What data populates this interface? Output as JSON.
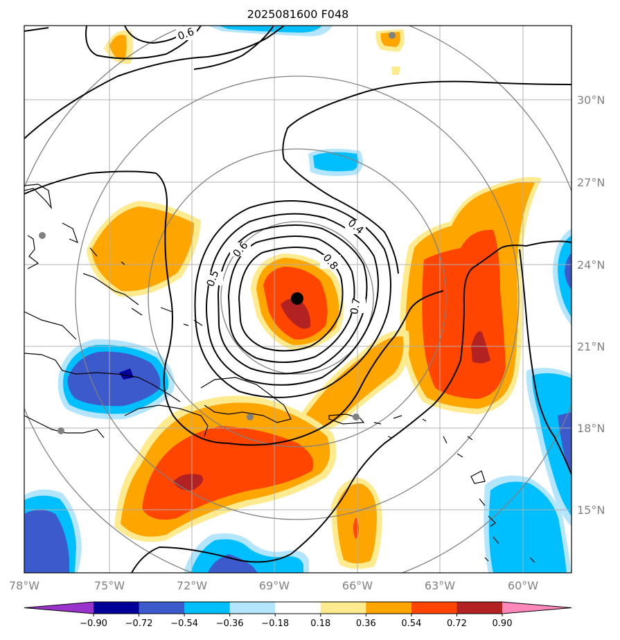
{
  "title": "2025081600 F048",
  "map": {
    "lon_labels": [
      "78°W",
      "75°W",
      "72°W",
      "69°W",
      "66°W",
      "63°W",
      "60°W"
    ],
    "lat_labels": [
      "30°N",
      "27°N",
      "24°N",
      "21°N",
      "18°N",
      "15°N"
    ],
    "contour_labels": [
      "0.6",
      "0.4",
      "0.6",
      "0.8",
      "0.5",
      "0.7"
    ],
    "center_marker": "storm-center"
  },
  "colorbar": {
    "ticks": [
      "−0.90",
      "−0.72",
      "−0.54",
      "−0.36",
      "−0.18",
      "0.18",
      "0.36",
      "0.54",
      "0.72",
      "0.90"
    ],
    "colors": [
      "#9933cc",
      "#000099",
      "#3c5acc",
      "#00bfff",
      "#b3e5fc",
      "#ffffff",
      "#ffeb8f",
      "#ffa500",
      "#ff4500",
      "#b22222",
      "#ff88bb"
    ]
  },
  "colors": {
    "grid": "#b0b0b0",
    "range_rings": "#808080",
    "contours": "#000000",
    "stations": "#808080"
  }
}
